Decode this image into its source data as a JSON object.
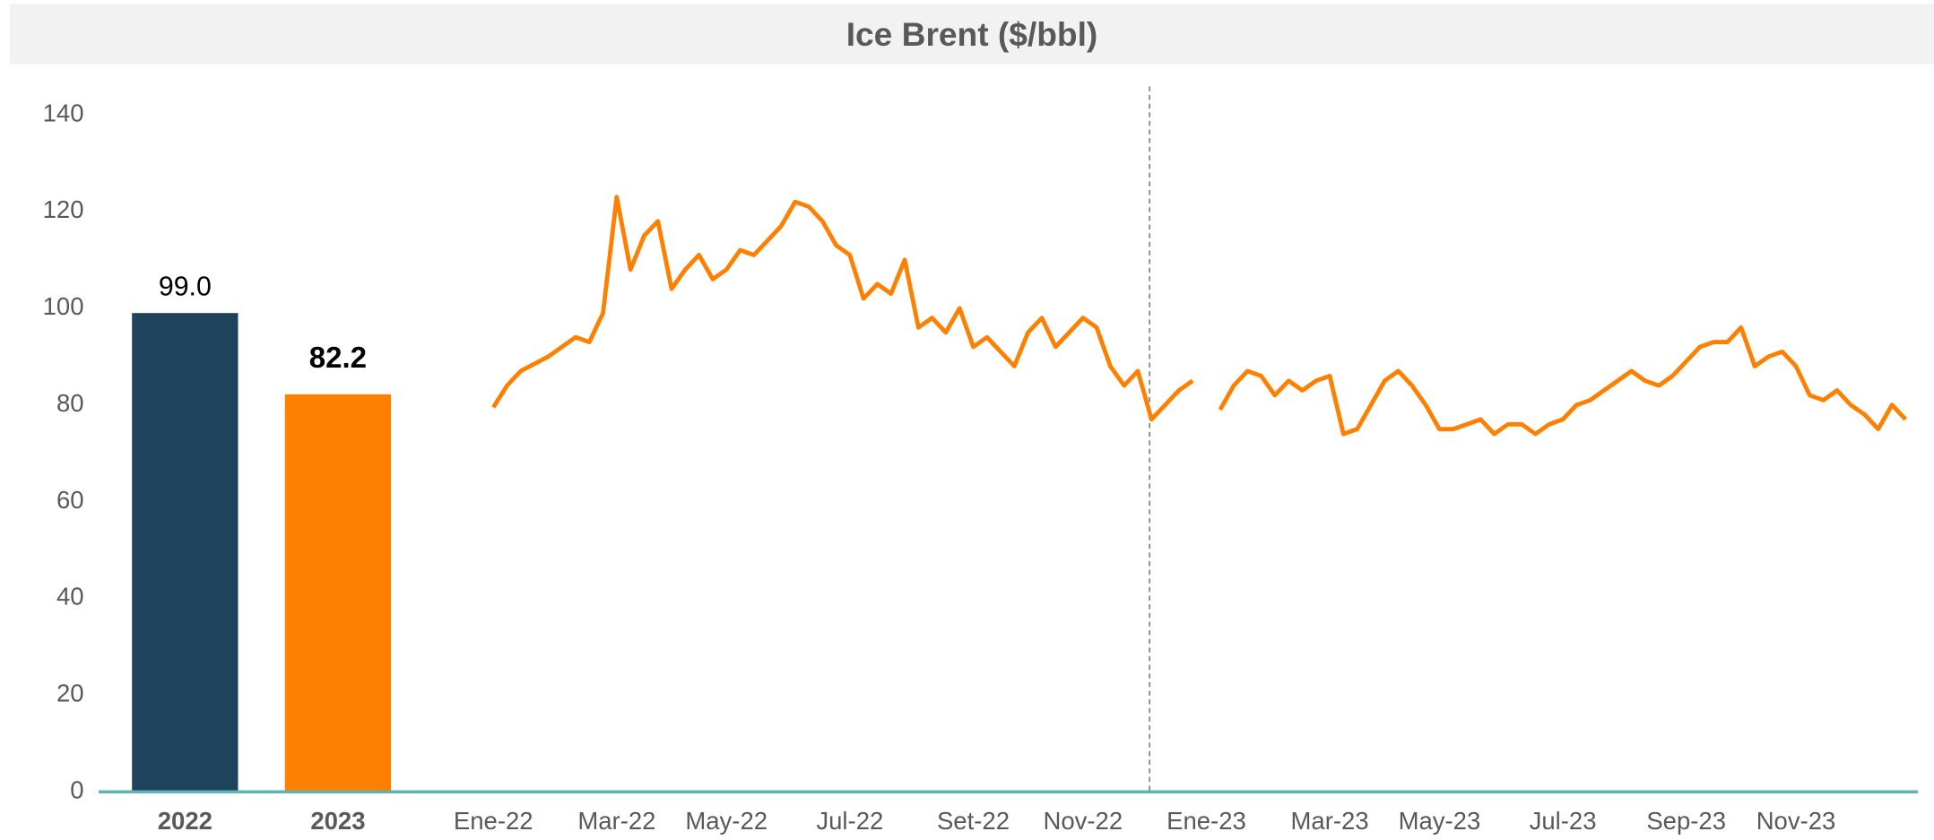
{
  "title": "Ice Brent ($/bbl)",
  "chart_data": [
    {
      "type": "bar",
      "categories": [
        "2022",
        "2023"
      ],
      "values": [
        99.0,
        82.2
      ],
      "value_labels": [
        "99.0",
        "82.2"
      ],
      "colors": [
        "#1f425d",
        "#ff8000"
      ],
      "ylim": [
        0,
        140
      ],
      "yticks": [
        0,
        20,
        40,
        60,
        80,
        100,
        120,
        140
      ]
    },
    {
      "type": "line",
      "color": "#ff8000",
      "ylim": [
        0,
        140
      ],
      "categories": [
        "Ene-22",
        null,
        null,
        null,
        null,
        null,
        null,
        null,
        null,
        "Mar-22",
        null,
        null,
        null,
        null,
        null,
        null,
        null,
        "May-22",
        null,
        null,
        null,
        null,
        null,
        null,
        null,
        null,
        "Jul-22",
        null,
        null,
        null,
        null,
        null,
        null,
        null,
        null,
        "Set-22",
        null,
        null,
        null,
        null,
        null,
        null,
        null,
        "Nov-22",
        null,
        null,
        null,
        null,
        null,
        null,
        null,
        null,
        "Ene-23",
        null,
        null,
        null,
        null,
        null,
        null,
        null,
        null,
        "Mar-23",
        null,
        null,
        null,
        null,
        null,
        null,
        null,
        "May-23",
        null,
        null,
        null,
        null,
        null,
        null,
        null,
        null,
        "Jul-23",
        null,
        null,
        null,
        null,
        null,
        null,
        null,
        null,
        "Sep-23",
        null,
        null,
        null,
        null,
        null,
        null,
        null,
        "Nov-23",
        null,
        null,
        null,
        null,
        null,
        null,
        null,
        null
      ],
      "values": [
        79.5,
        84,
        87,
        88.5,
        90,
        92,
        94,
        93,
        99,
        123,
        108,
        115,
        118,
        104,
        108,
        111,
        106,
        108,
        112,
        111,
        114,
        117,
        122,
        121,
        118,
        113,
        111,
        102,
        105,
        103,
        110,
        96,
        98,
        95,
        100,
        92,
        94,
        91,
        88,
        95,
        98,
        92,
        95,
        98,
        96,
        88,
        84,
        87,
        77,
        80,
        83,
        85,
        null,
        79,
        84,
        87,
        86,
        82,
        85,
        83,
        85,
        86,
        74,
        75,
        80,
        85,
        87,
        84,
        80,
        75,
        75,
        76,
        77,
        74,
        76,
        76,
        74,
        76,
        77,
        80,
        81,
        83,
        85,
        87,
        85,
        84,
        86,
        89,
        92,
        93,
        93,
        96,
        88,
        90,
        91,
        88,
        82,
        81,
        83,
        80,
        78,
        75,
        80,
        77
      ]
    }
  ]
}
